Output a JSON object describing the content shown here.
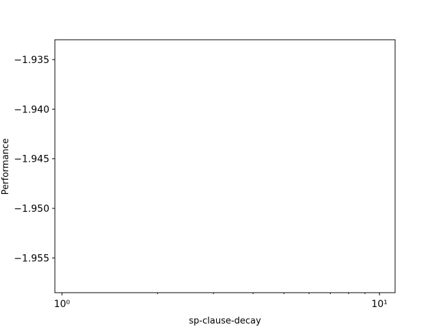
{
  "chart_data": {
    "type": "line",
    "title": "",
    "xlabel": "sp-clause-decay",
    "ylabel": "Performance",
    "xscale": "log",
    "xlim": [
      0.95,
      11.2
    ],
    "ylim": [
      -1.9585,
      -1.933
    ],
    "x_ticks": [
      {
        "value": 1,
        "label": "10⁰"
      },
      {
        "value": 10,
        "label": "10¹"
      }
    ],
    "x_minor_ticks": [
      2,
      3,
      4,
      5,
      6,
      7,
      8,
      9
    ],
    "y_ticks": [
      {
        "value": -1.935,
        "label": "−1.935"
      },
      {
        "value": -1.94,
        "label": "−1.940"
      },
      {
        "value": -1.945,
        "label": "−1.945"
      },
      {
        "value": -1.95,
        "label": "−1.950"
      },
      {
        "value": -1.955,
        "label": "−1.955"
      }
    ],
    "grid": false,
    "series": []
  }
}
